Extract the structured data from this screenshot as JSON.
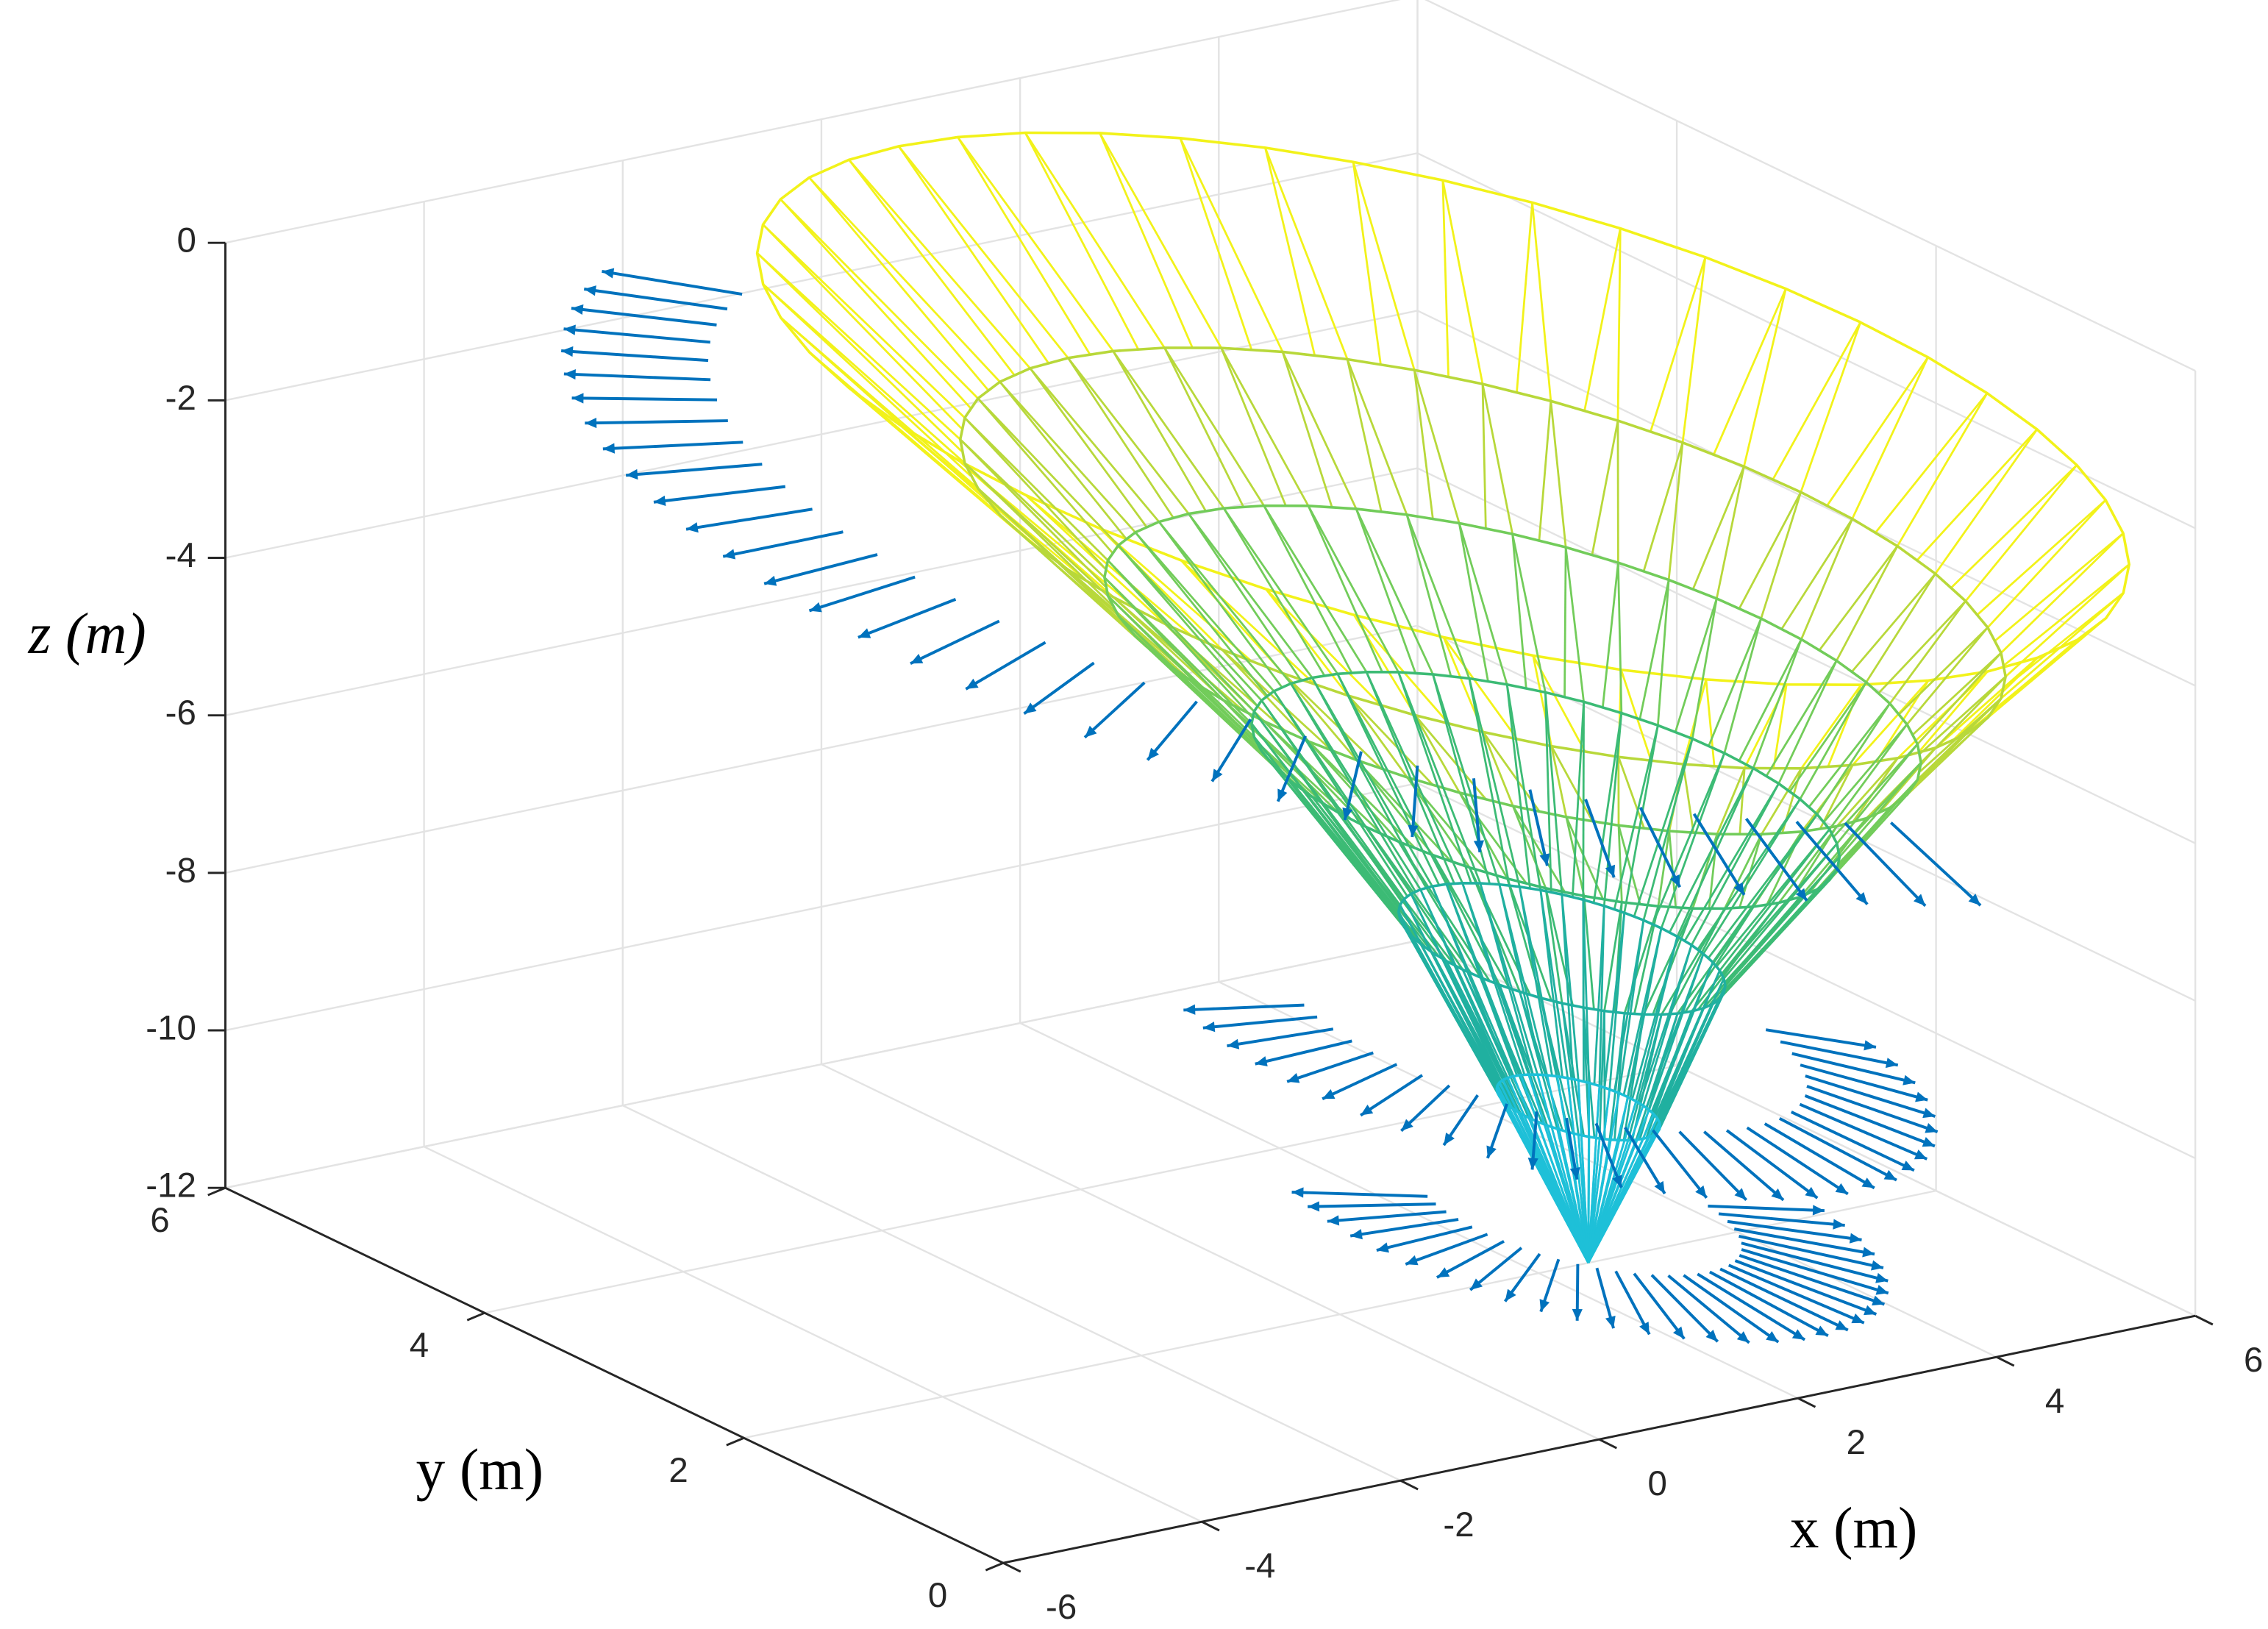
{
  "chart_data": {
    "type": "surface3d",
    "xlabel": "x (m)",
    "ylabel": "y (m)",
    "zlabel": "z (m)",
    "xlim": [
      -6,
      6
    ],
    "ylim": [
      0,
      6
    ],
    "zlim": [
      -12,
      0
    ],
    "xticks": [
      -6,
      -4,
      -2,
      0,
      2,
      4,
      6
    ],
    "yticks": [
      0,
      2,
      4,
      6
    ],
    "zticks": [
      0,
      -2,
      -4,
      -6,
      -8,
      -10,
      -12
    ],
    "grid": true,
    "rings": [
      {
        "z": -1,
        "r": 4.2,
        "center": [
          1.3,
          2.2
        ],
        "color": "#f2f21a"
      },
      {
        "z": -3,
        "r": 3.2,
        "center": [
          1.7,
          2.2
        ],
        "color": "#b8d83a"
      },
      {
        "z": -4.5,
        "r": 2.5,
        "center": [
          2.0,
          2.2
        ],
        "color": "#72cc5a"
      },
      {
        "z": -6,
        "r": 1.8,
        "center": [
          2.2,
          2.1
        ],
        "color": "#3cbb75"
      },
      {
        "z": -8,
        "r": 1.0,
        "center": [
          2.3,
          2.05
        ],
        "color": "#20b0a0"
      },
      {
        "z": -10,
        "r": 0.5,
        "center": [
          2.4,
          2.0
        ],
        "color": "#1ec0d8"
      },
      {
        "z": -12,
        "r": 0,
        "center": [
          2.5,
          2.0
        ],
        "color": "#1a6cff"
      }
    ],
    "quiver": [
      {
        "z": -2.5,
        "r": 4.5,
        "center": [
          1.3,
          2.2
        ],
        "theta": [
          110,
          255
        ],
        "count": 34,
        "len": 0.9,
        "dz": -0.3
      },
      {
        "z": -9,
        "r": 1.6,
        "center": [
          2.2,
          2.1
        ],
        "theta": [
          150,
          340
        ],
        "count": 30,
        "len": 0.8,
        "dz": -0.2
      },
      {
        "z": -11.3,
        "r": 1.0,
        "center": [
          2.4,
          2.0
        ],
        "theta": [
          150,
          345
        ],
        "count": 30,
        "len": 0.9,
        "dz": -0.1
      }
    ],
    "quiver_color": "#0072bd"
  }
}
